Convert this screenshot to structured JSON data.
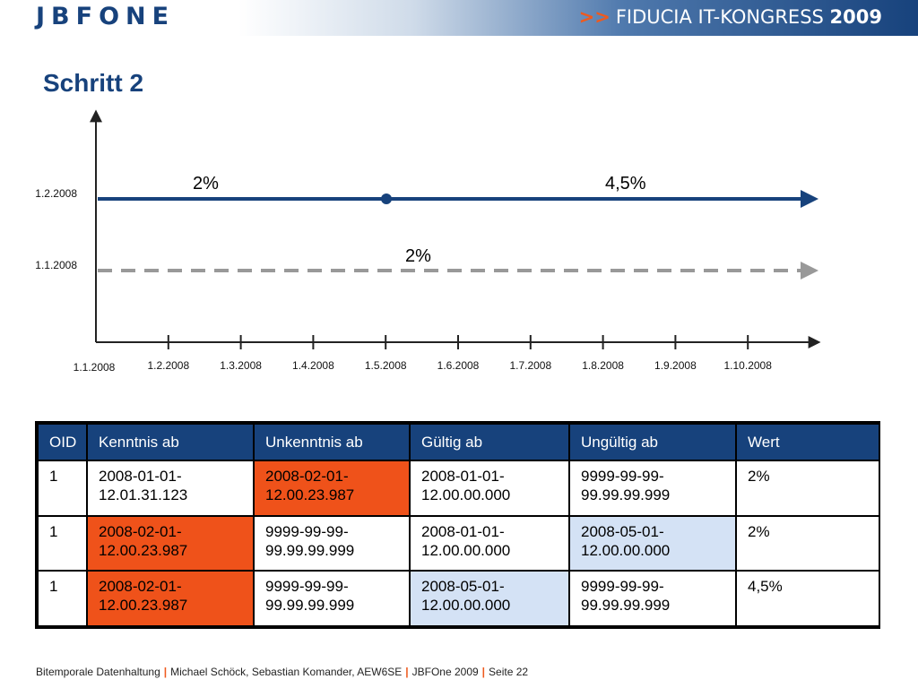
{
  "header": {
    "logo": "JBFONE",
    "arrows": ">>",
    "event": "FIDUCIA IT-KONGRESS",
    "year": "2009"
  },
  "slide": {
    "title": "Schritt 2"
  },
  "chart_data": {
    "type": "line",
    "x_ticks": [
      "1.1.2008",
      "1.2.2008",
      "1.3.2008",
      "1.4.2008",
      "1.5.2008",
      "1.6.2008",
      "1.7.2008",
      "1.8.2008",
      "1.9.2008",
      "1.10.2008"
    ],
    "y_ticks": [
      "1.1.2008",
      "1.2.2008"
    ],
    "series": [
      {
        "y": "1.2.2008",
        "x_start": "1.1.2008",
        "style": "solid",
        "color": "#17427c",
        "segments": [
          {
            "from": "1.1.2008",
            "to": "1.5.2008",
            "label": "2%"
          },
          {
            "from": "1.5.2008",
            "to": "open",
            "label": "4,5%"
          }
        ],
        "marker_at": "1.5.2008"
      },
      {
        "y": "1.1.2008",
        "x_start": "1.1.2008",
        "style": "dashed",
        "color": "#999999",
        "segments": [
          {
            "from": "1.1.2008",
            "to": "open",
            "label": "2%"
          }
        ]
      }
    ]
  },
  "table": {
    "headers": [
      "OID",
      "Kenntnis ab",
      "Unkenntnis ab",
      "Gültig ab",
      "Ungültig ab",
      "Wert"
    ],
    "rows": [
      [
        "1",
        "2008-01-01-12.01.31.123",
        "2008-02-01-12.00.23.987",
        "2008-01-01-12.00.00.000",
        "9999-99-99-99.99.99.999",
        "2%"
      ],
      [
        "1",
        "2008-02-01-12.00.23.987",
        "9999-99-99-99.99.99.999",
        "2008-01-01-12.00.00.000",
        "2008-05-01-12.00.00.000",
        "2%"
      ],
      [
        "1",
        "2008-02-01-12.00.23.987",
        "9999-99-99-99.99.99.999",
        "2008-05-01-12.00.00.000",
        "9999-99-99-99.99.99.999",
        "4,5%"
      ]
    ],
    "highlights": {
      "orange": "#ef521a",
      "blue": "#d4e2f5",
      "cells": [
        {
          "row": 0,
          "col": 2,
          "color": "orange"
        },
        {
          "row": 1,
          "col": 1,
          "color": "orange"
        },
        {
          "row": 1,
          "col": 4,
          "color": "blue"
        },
        {
          "row": 2,
          "col": 1,
          "color": "orange"
        },
        {
          "row": 2,
          "col": 3,
          "color": "blue"
        }
      ]
    }
  },
  "footer": {
    "part1": "Bitemporale Datenhaltung",
    "part2": "Michael Schöck, Sebastian Komander, AEW6SE",
    "part3": "JBFOne 2009",
    "part4": "Seite 22",
    "separator": "|"
  }
}
